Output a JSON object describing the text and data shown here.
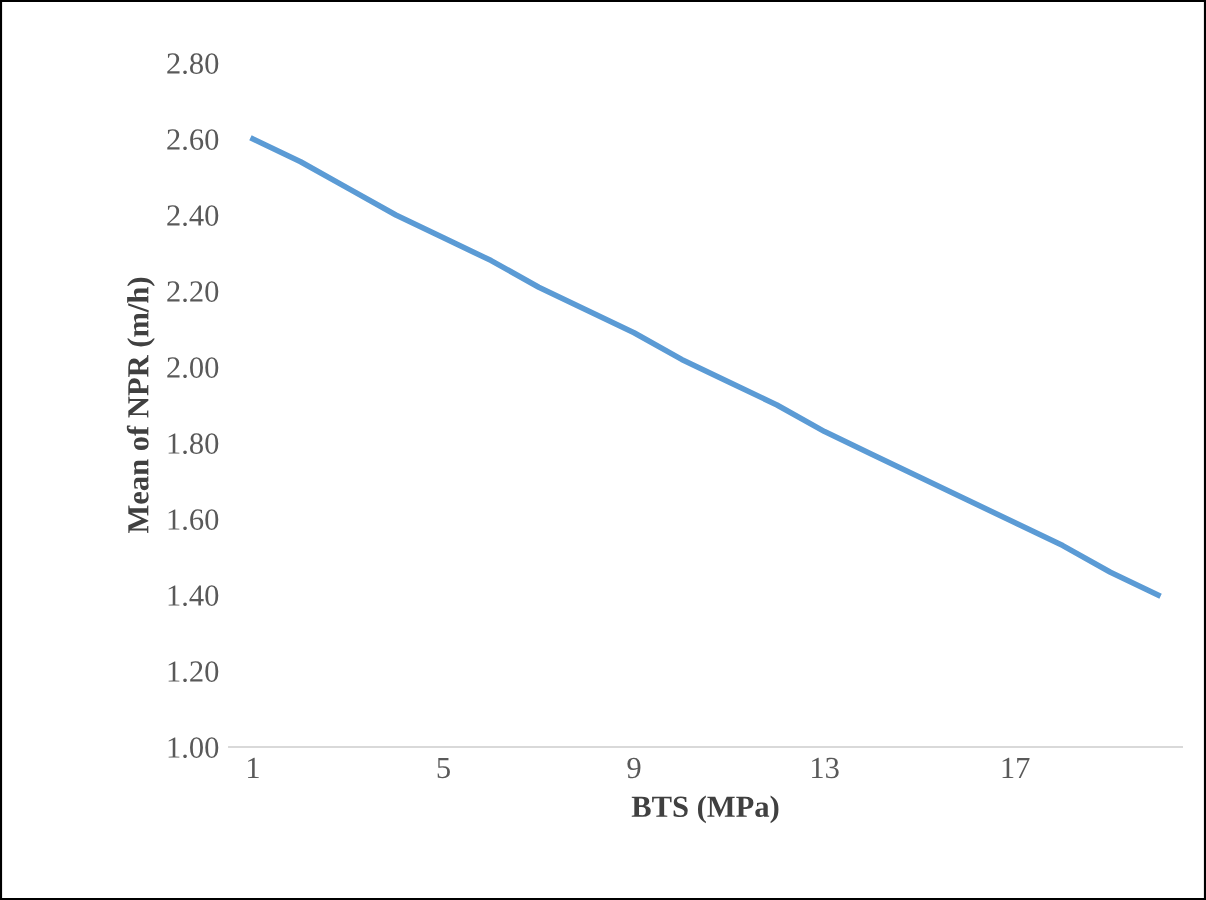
{
  "chart_data": {
    "type": "line",
    "xlabel": "BTS (MPa)",
    "ylabel": "Mean of NPR (m/h)",
    "categories": [
      "1",
      null,
      null,
      null,
      "5",
      null,
      null,
      null,
      "9",
      null,
      null,
      null,
      "13",
      null,
      null,
      null,
      "17",
      null,
      null,
      null
    ],
    "series": [
      {
        "color": "#5b9bd5",
        "values": [
          2.6,
          2.54,
          2.47,
          2.4,
          2.34,
          2.28,
          2.21,
          2.15,
          2.09,
          2.02,
          1.96,
          1.9,
          1.83,
          1.77,
          1.71,
          1.65,
          1.59,
          1.53,
          1.46,
          1.4
        ]
      }
    ],
    "ylim": [
      1.0,
      2.8
    ],
    "yticks": [
      {
        "value": 1.0,
        "label": "1.00"
      },
      {
        "value": 1.2,
        "label": "1.20"
      },
      {
        "value": 1.4,
        "label": "1.40"
      },
      {
        "value": 1.6,
        "label": "1.60"
      },
      {
        "value": 1.8,
        "label": "1.80"
      },
      {
        "value": 2.0,
        "label": "2.00"
      },
      {
        "value": 2.2,
        "label": "2.20"
      },
      {
        "value": 2.4,
        "label": "2.40"
      },
      {
        "value": 2.6,
        "label": "2.60"
      },
      {
        "value": 2.8,
        "label": "2.80"
      }
    ],
    "grid": false,
    "legend": false,
    "marker": "none",
    "line_style": "solid"
  }
}
